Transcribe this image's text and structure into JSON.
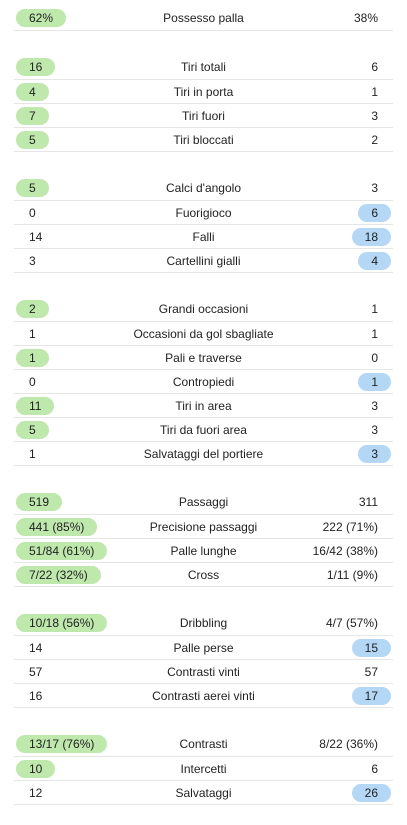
{
  "colors": {
    "home_highlight": "#bfe8ad",
    "away_highlight": "#b3d7f5",
    "divider": "#e6e6e6"
  },
  "sections": [
    {
      "rows": [
        {
          "label": "Possesso palla",
          "home": "62%",
          "away": "38%",
          "highlight": "home"
        }
      ]
    },
    {
      "rows": [
        {
          "label": "Tiri totali",
          "home": "16",
          "away": "6",
          "highlight": "home"
        },
        {
          "label": "Tiri in porta",
          "home": "4",
          "away": "1",
          "highlight": "home"
        },
        {
          "label": "Tiri fuori",
          "home": "7",
          "away": "3",
          "highlight": "home"
        },
        {
          "label": "Tiri bloccati",
          "home": "5",
          "away": "2",
          "highlight": "home"
        }
      ]
    },
    {
      "rows": [
        {
          "label": "Calci d'angolo",
          "home": "5",
          "away": "3",
          "highlight": "home"
        },
        {
          "label": "Fuorigioco",
          "home": "0",
          "away": "6",
          "highlight": "away"
        },
        {
          "label": "Falli",
          "home": "14",
          "away": "18",
          "highlight": "away"
        },
        {
          "label": "Cartellini gialli",
          "home": "3",
          "away": "4",
          "highlight": "away"
        }
      ]
    },
    {
      "rows": [
        {
          "label": "Grandi occasioni",
          "home": "2",
          "away": "1",
          "highlight": "home"
        },
        {
          "label": "Occasioni da gol sbagliate",
          "home": "1",
          "away": "1",
          "highlight": "none"
        },
        {
          "label": "Pali e traverse",
          "home": "1",
          "away": "0",
          "highlight": "home"
        },
        {
          "label": "Contropiedi",
          "home": "0",
          "away": "1",
          "highlight": "away"
        },
        {
          "label": "Tiri in area",
          "home": "11",
          "away": "3",
          "highlight": "home"
        },
        {
          "label": "Tiri da fuori area",
          "home": "5",
          "away": "3",
          "highlight": "home"
        },
        {
          "label": "Salvataggi del portiere",
          "home": "1",
          "away": "3",
          "highlight": "away"
        }
      ]
    },
    {
      "rows": [
        {
          "label": "Passaggi",
          "home": "519",
          "away": "311",
          "highlight": "home"
        },
        {
          "label": "Precisione passaggi",
          "home": "441 (85%)",
          "away": "222 (71%)",
          "highlight": "home"
        },
        {
          "label": "Palle lunghe",
          "home": "51/84 (61%)",
          "away": "16/42 (38%)",
          "highlight": "home"
        },
        {
          "label": "Cross",
          "home": "7/22 (32%)",
          "away": "1/11 (9%)",
          "highlight": "home"
        }
      ]
    },
    {
      "rows": [
        {
          "label": "Dribbling",
          "home": "10/18 (56%)",
          "away": "4/7 (57%)",
          "highlight": "home"
        },
        {
          "label": "Palle perse",
          "home": "14",
          "away": "15",
          "highlight": "away"
        },
        {
          "label": "Contrasti vinti",
          "home": "57",
          "away": "57",
          "highlight": "none"
        },
        {
          "label": "Contrasti aerei vinti",
          "home": "16",
          "away": "17",
          "highlight": "away"
        }
      ]
    },
    {
      "rows": [
        {
          "label": "Contrasti",
          "home": "13/17 (76%)",
          "away": "8/22 (36%)",
          "highlight": "home"
        },
        {
          "label": "Intercetti",
          "home": "10",
          "away": "6",
          "highlight": "home"
        },
        {
          "label": "Salvataggi",
          "home": "12",
          "away": "26",
          "highlight": "away"
        }
      ]
    }
  ]
}
